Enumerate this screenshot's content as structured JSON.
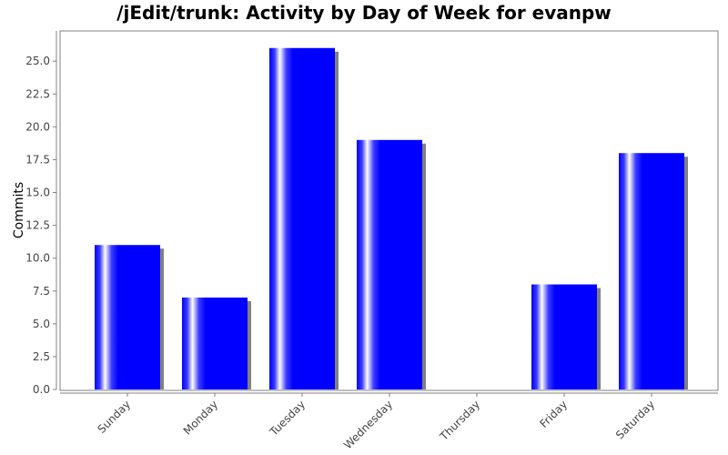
{
  "chart_data": {
    "type": "bar",
    "title": "/jEdit/trunk: Activity by Day of Week for evanpw",
    "xlabel": "",
    "ylabel": "Commits",
    "categories": [
      "Sunday",
      "Monday",
      "Tuesday",
      "Wednesday",
      "Thursday",
      "Friday",
      "Saturday"
    ],
    "values": [
      11,
      7,
      26,
      19,
      0,
      8,
      18
    ],
    "ylim": [
      0,
      27.3
    ],
    "yticks": [
      "0.0",
      "2.5",
      "5.0",
      "7.5",
      "10.0",
      "12.5",
      "15.0",
      "17.5",
      "20.0",
      "22.5",
      "25.0"
    ],
    "grid": false,
    "colors": {
      "bar": "#0000ff",
      "bar_highlight": "#ffffff",
      "shadow": "#808080",
      "axis": "#808080"
    }
  }
}
